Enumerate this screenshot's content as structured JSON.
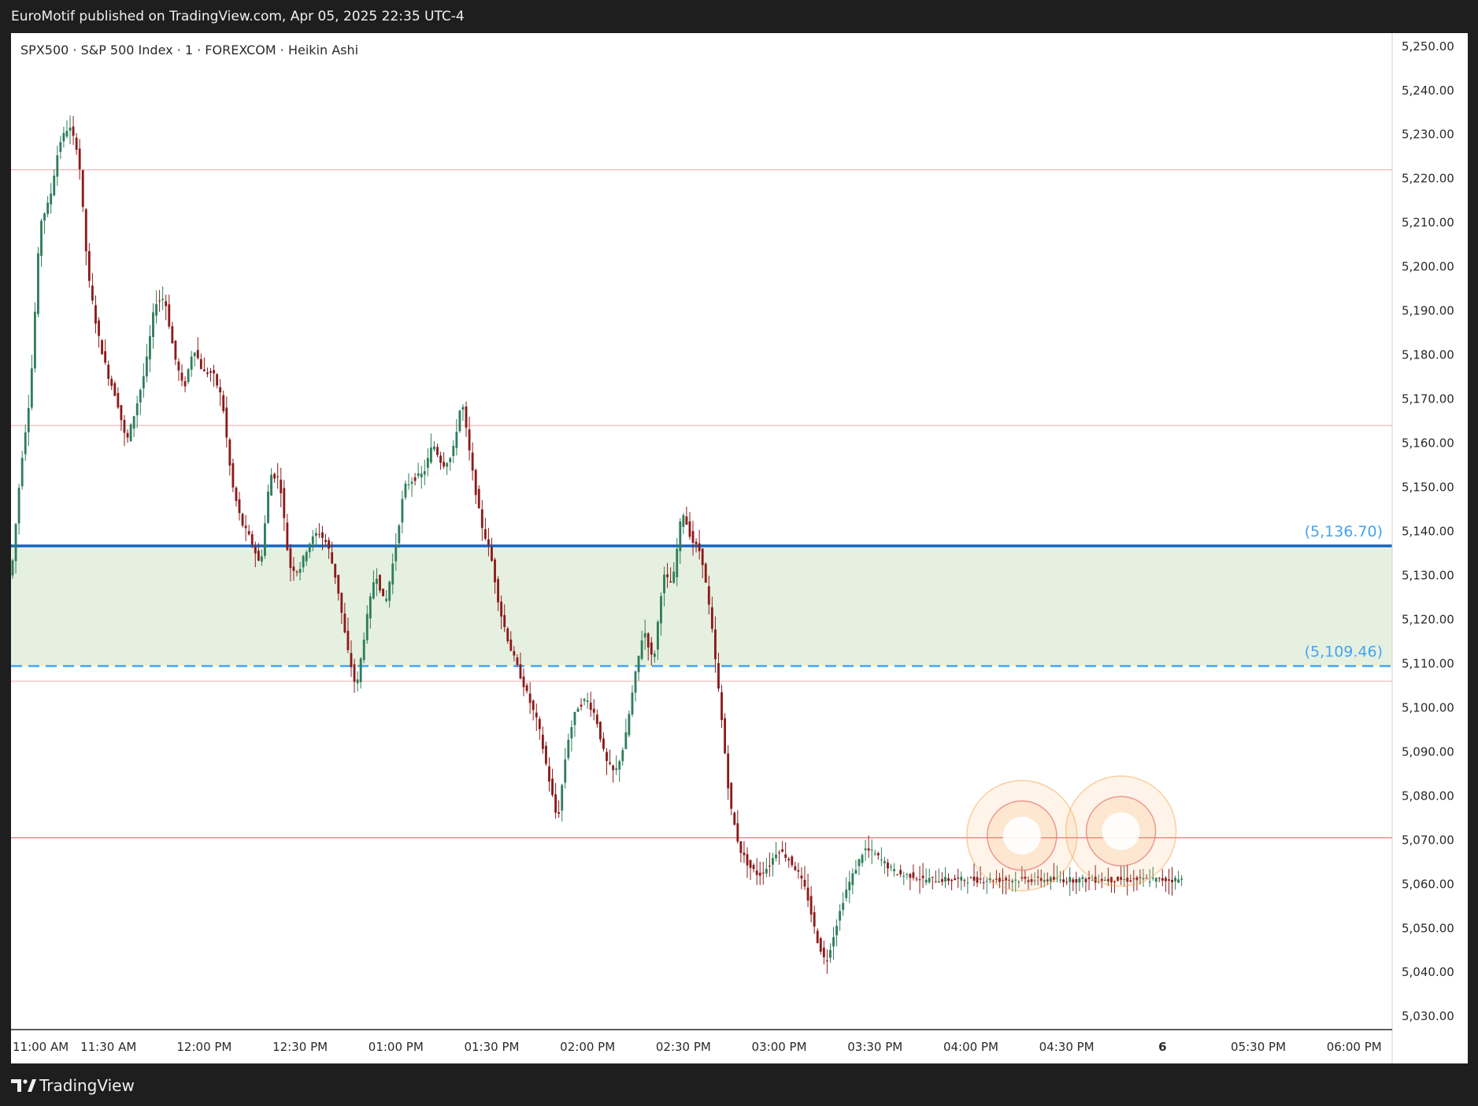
{
  "header": {
    "publish_line": "EuroMotif published on TradingView.com, Apr 05, 2025 22:35 UTC-4"
  },
  "footer": {
    "brand": "TradingView",
    "logo_icon": "tradingview-logo-icon"
  },
  "chart_data": {
    "type": "candlestick",
    "candle_style": "Heikin Ashi",
    "legend": "SPX500 · S&P 500 Index · 1 · FOREXCOM · Heikin Ashi",
    "ylim": [
      5027,
      5253
    ],
    "y_ticks": [
      "5,250.00",
      "5,240.00",
      "5,230.00",
      "5,220.00",
      "5,210.00",
      "5,200.00",
      "5,190.00",
      "5,180.00",
      "5,170.00",
      "5,160.00",
      "5,150.00",
      "5,140.00",
      "5,130.00",
      "5,120.00",
      "5,110.00",
      "5,100.00",
      "5,090.00",
      "5,080.00",
      "5,070.00",
      "5,060.00",
      "5,050.00",
      "5,040.00",
      "5,030.00"
    ],
    "y_tick_values": [
      5250,
      5240,
      5230,
      5220,
      5210,
      5200,
      5190,
      5180,
      5170,
      5160,
      5150,
      5140,
      5130,
      5120,
      5110,
      5100,
      5090,
      5080,
      5070,
      5060,
      5050,
      5040,
      5030
    ],
    "x_ticks": [
      "11:00 AM",
      "11:30 AM",
      "12:00 PM",
      "12:30 PM",
      "01:00 PM",
      "01:30 PM",
      "02:00 PM",
      "02:30 PM",
      "03:00 PM",
      "03:30 PM",
      "04:00 PM",
      "04:30 PM",
      "6",
      "05:30 PM",
      "06:00 PM"
    ],
    "x_range_minutes": [
      0,
      425
    ],
    "x_tick_minutes": [
      0,
      30,
      60,
      90,
      120,
      150,
      180,
      210,
      240,
      270,
      300,
      330,
      360,
      390,
      420
    ],
    "bullish_color": "#2e7d5b",
    "bearish_color": "#8b1a1a",
    "path_minutes": [
      0,
      3,
      6,
      9,
      12,
      15,
      18,
      21,
      24,
      27,
      30,
      33,
      36,
      39,
      42,
      45,
      48,
      51,
      54,
      57,
      60,
      63,
      66,
      69,
      72,
      75,
      78,
      81,
      84,
      87,
      90,
      93,
      96,
      99,
      102,
      105,
      108,
      111,
      114,
      117,
      120,
      123,
      126,
      129,
      132,
      135,
      138,
      141,
      144,
      147,
      150,
      153,
      156,
      159,
      162,
      165,
      168,
      171,
      174,
      177,
      180,
      183,
      186,
      189,
      192,
      195,
      198,
      201,
      204,
      207,
      210,
      213,
      216,
      219,
      222,
      225,
      228,
      231,
      234,
      237,
      240,
      243,
      246,
      249,
      252,
      255,
      258,
      261,
      264,
      267,
      270,
      273,
      276,
      279,
      282,
      285,
      288,
      291,
      294,
      297,
      300,
      303,
      306,
      309,
      312,
      315,
      318,
      321,
      324,
      327,
      330,
      333,
      336,
      339,
      342,
      345,
      348,
      351,
      354,
      357,
      360,
      363,
      366
    ],
    "path_closes": [
      5130,
      5155,
      5172,
      5210,
      5215,
      5228,
      5232,
      5226,
      5198,
      5185,
      5176,
      5170,
      5160,
      5168,
      5177,
      5192,
      5193,
      5180,
      5172,
      5182,
      5176,
      5176,
      5170,
      5151,
      5142,
      5138,
      5132,
      5153,
      5152,
      5132,
      5131,
      5137,
      5140,
      5137,
      5128,
      5114,
      5104,
      5119,
      5131,
      5123,
      5135,
      5150,
      5152,
      5153,
      5160,
      5155,
      5157,
      5170,
      5155,
      5142,
      5135,
      5122,
      5114,
      5108,
      5102,
      5096,
      5085,
      5074,
      5092,
      5100,
      5102,
      5098,
      5088,
      5085,
      5092,
      5106,
      5118,
      5110,
      5130,
      5128,
      5145,
      5138,
      5135,
      5120,
      5100,
      5078,
      5068,
      5064,
      5062,
      5064,
      5068,
      5066,
      5063,
      5058,
      5048,
      5042,
      5050,
      5058,
      5063,
      5068,
      5067,
      5065,
      5063,
      5062,
      5062,
      5061,
      5061,
      5061,
      5061,
      5061,
      5061,
      5061,
      5061,
      5061,
      5061,
      5061,
      5061,
      5061,
      5061,
      5061,
      5061,
      5061,
      5061,
      5061,
      5061,
      5061,
      5061,
      5061,
      5061,
      5061,
      5061,
      5061,
      5061,
      5061,
      5061
    ],
    "path_end_minute": 366,
    "levels": [
      {
        "price": 5222.0,
        "style": "thin",
        "color": "#f3b3b3"
      },
      {
        "price": 5164.0,
        "style": "thin",
        "color": "#f3b3b3"
      },
      {
        "price": 5136.7,
        "style": "solid-bold",
        "color": "#1565c0",
        "label": "(5,136.70)"
      },
      {
        "price": 5109.46,
        "style": "dashed",
        "color": "#42a5f5",
        "label": "(5,109.46)"
      },
      {
        "price": 5106.0,
        "style": "thin",
        "color": "#f3b3b3"
      },
      {
        "price": 5070.5,
        "style": "thin",
        "color": "#e57373"
      }
    ],
    "zone": {
      "from": 5109.46,
      "to": 5136.7,
      "color": "#e6f0e0"
    },
    "highlights": [
      {
        "center_minute": 316,
        "price": 5071,
        "color": "#f5a34a"
      },
      {
        "center_minute": 347,
        "price": 5072,
        "color": "#f5a34a"
      }
    ]
  }
}
